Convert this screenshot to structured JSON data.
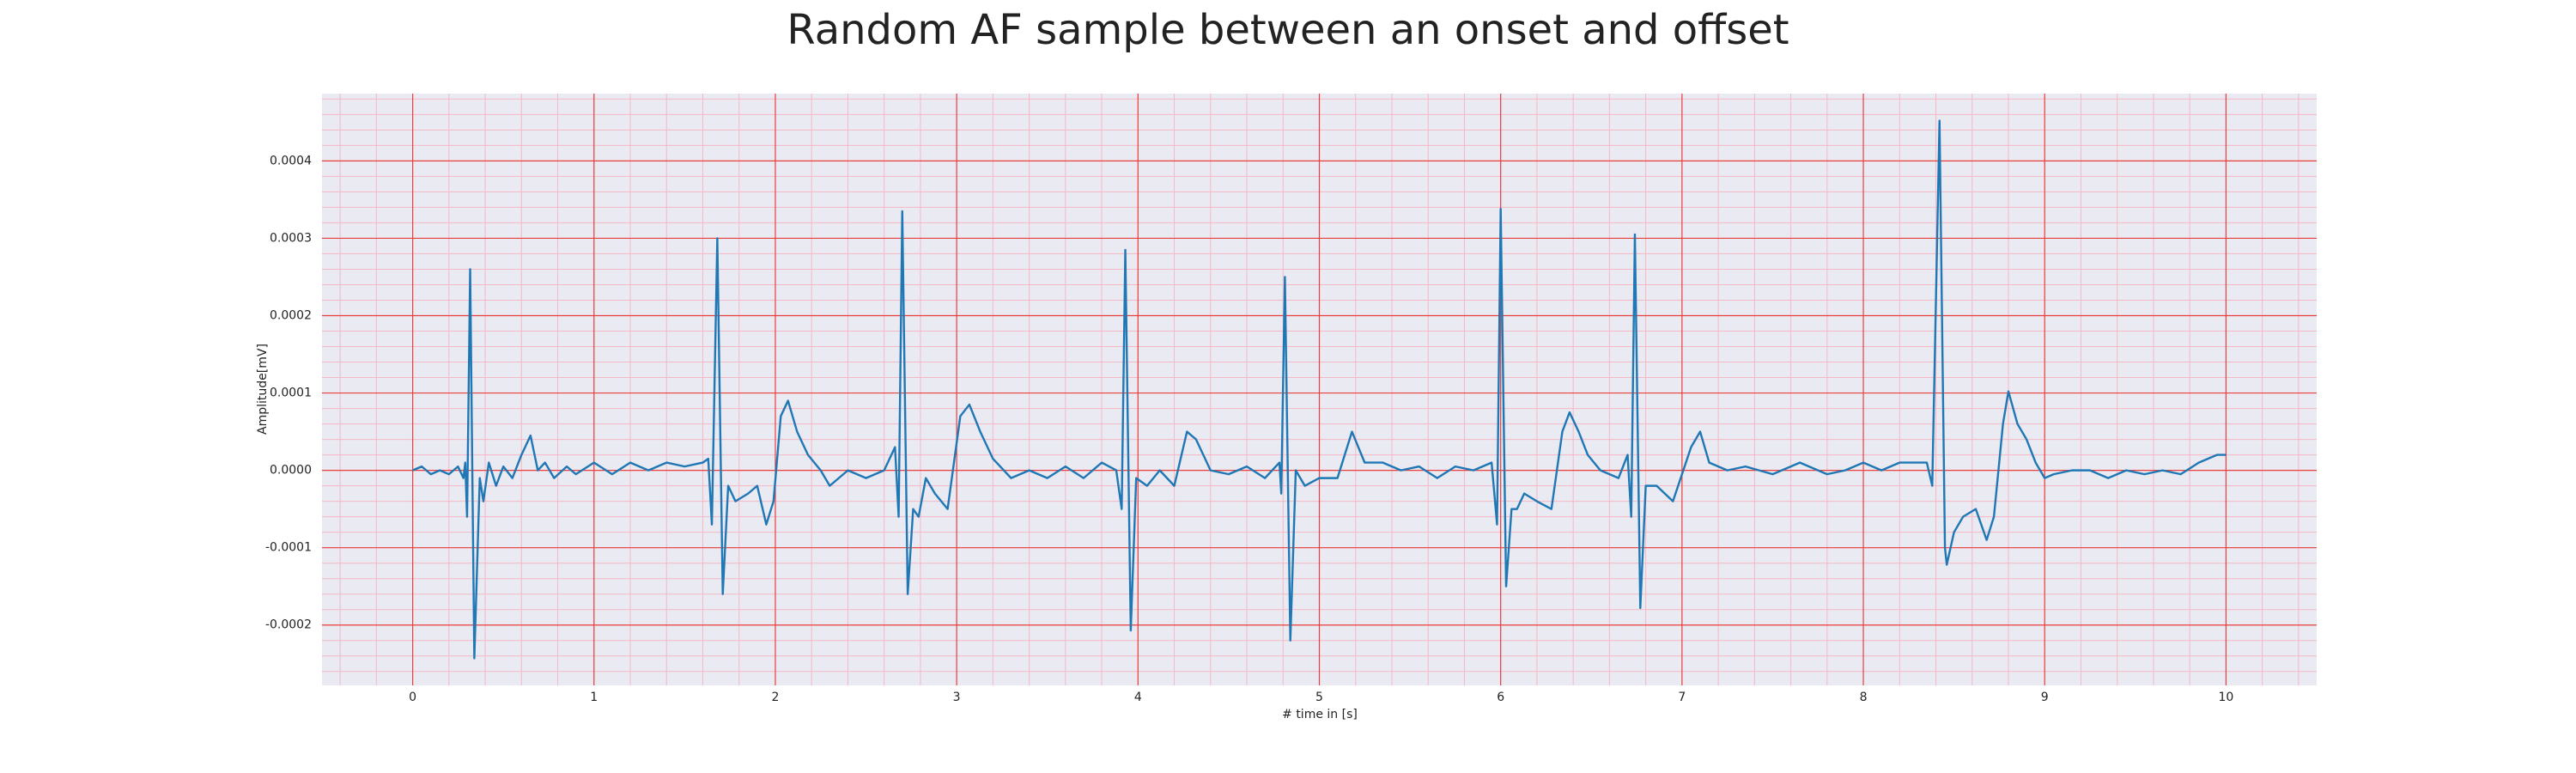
{
  "chart_data": {
    "type": "line",
    "title": "Random AF sample between an onset and offset",
    "xlabel": "# time in [s]",
    "ylabel": "Amplitude[mV]",
    "color": "#1f77b4",
    "grid": true,
    "minor_grid": true,
    "xlim": [
      -0.5,
      10.5
    ],
    "ylim": [
      -0.000278,
      0.000487
    ],
    "xticks": [
      0,
      1,
      2,
      3,
      4,
      5,
      6,
      7,
      8,
      9,
      10
    ],
    "yticks": [
      {
        "value": -0.0002,
        "label": "-0.0002"
      },
      {
        "value": -0.0001,
        "label": "-0.0001"
      },
      {
        "value": 0,
        "label": "0.0000"
      },
      {
        "value": 0.0001,
        "label": "0.0001"
      },
      {
        "value": 0.0002,
        "label": "0.0002"
      },
      {
        "value": 0.0003,
        "label": "0.0003"
      },
      {
        "value": 0.0004,
        "label": "0.0004"
      }
    ],
    "x": [
      0.0,
      0.05,
      0.1,
      0.15,
      0.2,
      0.25,
      0.28,
      0.29,
      0.3,
      0.317,
      0.34,
      0.37,
      0.39,
      0.42,
      0.46,
      0.5,
      0.55,
      0.6,
      0.65,
      0.69,
      0.73,
      0.78,
      0.85,
      0.9,
      1.0,
      1.1,
      1.2,
      1.3,
      1.4,
      1.5,
      1.6,
      1.63,
      1.65,
      1.68,
      1.71,
      1.74,
      1.78,
      1.85,
      1.9,
      1.95,
      1.99,
      2.03,
      2.07,
      2.12,
      2.18,
      2.25,
      2.3,
      2.4,
      2.5,
      2.6,
      2.66,
      2.68,
      2.7,
      2.73,
      2.76,
      2.79,
      2.83,
      2.88,
      2.95,
      3.02,
      3.07,
      3.13,
      3.2,
      3.3,
      3.4,
      3.5,
      3.6,
      3.7,
      3.8,
      3.88,
      3.91,
      3.93,
      3.96,
      3.99,
      4.05,
      4.12,
      4.2,
      4.27,
      4.32,
      4.4,
      4.5,
      4.6,
      4.7,
      4.78,
      4.79,
      4.81,
      4.84,
      4.87,
      4.92,
      5.0,
      5.1,
      5.18,
      5.25,
      5.35,
      5.45,
      5.55,
      5.65,
      5.75,
      5.85,
      5.95,
      5.98,
      6.0,
      6.03,
      6.06,
      6.09,
      6.13,
      6.2,
      6.28,
      6.34,
      6.38,
      6.43,
      6.48,
      6.55,
      6.65,
      6.7,
      6.72,
      6.74,
      6.77,
      6.8,
      6.86,
      6.95,
      7.05,
      7.1,
      7.15,
      7.25,
      7.35,
      7.5,
      7.65,
      7.8,
      7.9,
      8.0,
      8.1,
      8.2,
      8.35,
      8.38,
      8.42,
      8.45,
      8.46,
      8.5,
      8.55,
      8.62,
      8.68,
      8.72,
      8.77,
      8.8,
      8.85,
      8.9,
      8.95,
      9.0,
      9.05,
      9.15,
      9.25,
      9.35,
      9.45,
      9.55,
      9.65,
      9.75,
      9.85,
      9.95,
      10.0
    ],
    "values": [
      0,
      5e-06,
      -5e-06,
      0,
      -5e-06,
      5e-06,
      -1e-05,
      1e-05,
      -6e-05,
      0.00026,
      -0.000243,
      -1e-05,
      -4e-05,
      1e-05,
      -2e-05,
      5e-06,
      -1e-05,
      2e-05,
      4.5e-05,
      0,
      1e-05,
      -1e-05,
      5e-06,
      -5e-06,
      1e-05,
      -5e-06,
      1e-05,
      0,
      1e-05,
      5e-06,
      1e-05,
      1.5e-05,
      -7e-05,
      0.0003,
      -0.00016,
      -2e-05,
      -4e-05,
      -3e-05,
      -2e-05,
      -7e-05,
      -4e-05,
      7e-05,
      9e-05,
      5e-05,
      2e-05,
      0,
      -2e-05,
      0,
      -1e-05,
      0,
      3e-05,
      -6e-05,
      0.000335,
      -0.00016,
      -5e-05,
      -6e-05,
      -1e-05,
      -3e-05,
      -5e-05,
      7e-05,
      8.5e-05,
      5e-05,
      1.5e-05,
      -1e-05,
      0,
      -1e-05,
      5e-06,
      -1e-05,
      1e-05,
      0,
      -5e-05,
      0.000285,
      -0.000207,
      -1e-05,
      -2e-05,
      0,
      -2e-05,
      5e-05,
      4e-05,
      0,
      -5e-06,
      5e-06,
      -1e-05,
      1e-05,
      -3e-05,
      0.00025,
      -0.00022,
      0,
      -2e-05,
      -1e-05,
      -1e-05,
      5e-05,
      1e-05,
      1e-05,
      0,
      5e-06,
      -1e-05,
      5e-06,
      0,
      1e-05,
      -7e-05,
      0.000338,
      -0.00015,
      -5e-05,
      -5e-05,
      -3e-05,
      -4e-05,
      -5e-05,
      5e-05,
      7.5e-05,
      5e-05,
      2e-05,
      0,
      -1e-05,
      2e-05,
      -6e-05,
      0.000305,
      -0.000178,
      -2e-05,
      -2e-05,
      -4e-05,
      3e-05,
      5e-05,
      1e-05,
      0,
      5e-06,
      -5e-06,
      1e-05,
      -5e-06,
      0,
      1e-05,
      0,
      1e-05,
      1e-05,
      -2e-05,
      0.000452,
      -0.0001,
      -0.000122,
      -8e-05,
      -6e-05,
      -5e-05,
      -9e-05,
      -6e-05,
      6e-05,
      0.000102,
      6e-05,
      4e-05,
      1e-05,
      -1e-05,
      -5e-06,
      0,
      0,
      -1e-05,
      0,
      -5e-06,
      0,
      -5e-06,
      1e-05,
      2e-05,
      2e-05
    ]
  }
}
